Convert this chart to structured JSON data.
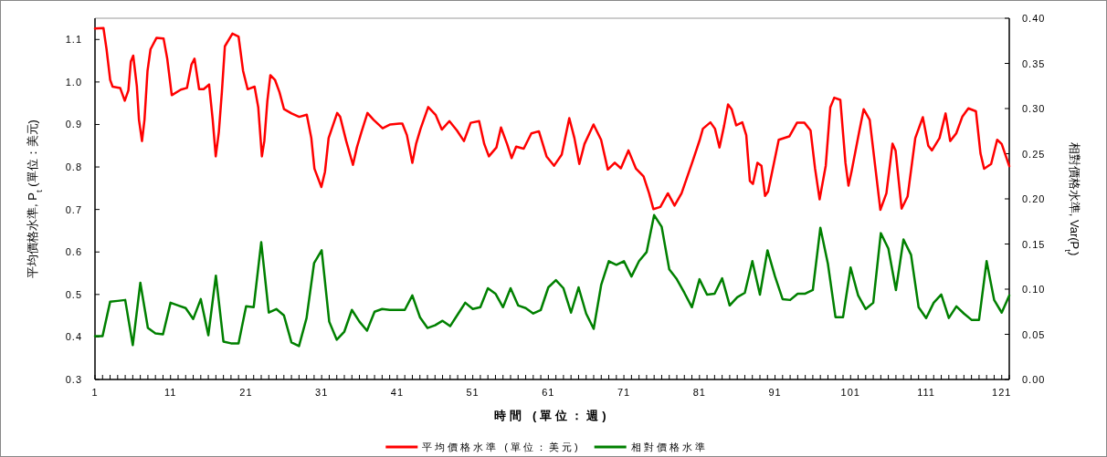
{
  "chart_data": {
    "type": "line",
    "xlabel": "時間 (單位：週)",
    "ylabel": "平均價格水準, P$_{t}$ (單位：美元)",
    "y2label": "相對價格水準, Var(P$_{t}$)",
    "x": [
      1,
      2,
      3,
      4,
      5,
      6,
      7,
      8,
      9,
      10,
      11,
      12,
      13,
      14,
      15,
      16,
      17,
      18,
      19,
      20,
      21,
      22,
      23,
      24,
      25,
      26,
      27,
      28,
      29,
      30,
      31,
      32,
      33,
      34,
      35,
      36,
      37,
      38,
      39,
      40,
      41,
      42,
      43,
      44,
      45,
      46,
      47,
      48,
      49,
      50,
      51,
      52,
      53,
      54,
      55,
      56,
      57,
      58,
      59,
      60,
      61,
      62,
      63,
      64,
      65,
      66,
      67,
      68,
      69,
      70,
      71,
      72,
      73,
      74,
      75,
      76,
      77,
      78,
      79,
      80,
      81,
      82,
      83,
      84,
      85,
      86,
      87,
      88,
      89,
      90,
      91,
      92,
      93,
      94,
      95,
      96,
      97,
      98,
      99,
      100,
      101,
      102,
      103,
      104,
      105,
      106,
      107,
      108,
      109,
      110,
      111,
      112,
      113,
      114,
      115,
      116,
      117,
      118,
      119,
      120,
      121,
      122
    ],
    "series": [
      {
        "name": "平均價格水準 (單位：美元)",
        "color": "#ff0000",
        "x": [
          1.0,
          2.12,
          2.53,
          3.01,
          3.33,
          4.33,
          4.94,
          5.42,
          5.74,
          6.06,
          6.54,
          6.82,
          7.22,
          7.55,
          7.95,
          8.35,
          9.15,
          10.08,
          10.56,
          11.16,
          12.37,
          13.17,
          13.77,
          14.17,
          14.78,
          15.38,
          16.1,
          16.58,
          16.98,
          17.39,
          17.79,
          18.19,
          19.19,
          20.0,
          20.6,
          21.2,
          22.12,
          22.61,
          23.09,
          23.41,
          23.81,
          24.21,
          24.82,
          25.42,
          26.02,
          27.02,
          28.03,
          29.03,
          29.63,
          30.04,
          30.96,
          31.44,
          31.92,
          33.05,
          33.45,
          34.25,
          35.14,
          35.66,
          36.26,
          37.06,
          37.87,
          39.07,
          40.08,
          41.28,
          41.68,
          42.28,
          43.0,
          43.49,
          44.09,
          45.1,
          46.1,
          46.9,
          47.9,
          48.9,
          49.83,
          50.72,
          51.84,
          52.52,
          53.13,
          54.13,
          54.73,
          55.54,
          56.14,
          56.74,
          57.74,
          58.75,
          59.75,
          60.76,
          61.76,
          62.77,
          63.77,
          64.45,
          65.1,
          65.78,
          66.98,
          67.98,
          68.87,
          69.79,
          70.6,
          71.6,
          72.6,
          73.6,
          74.33,
          74.9,
          75.82,
          76.82,
          77.7,
          78.63,
          80.03,
          81.04,
          81.45,
          82.45,
          83.05,
          83.65,
          84.26,
          84.78,
          85.26,
          85.86,
          86.67,
          87.19,
          87.67,
          88.07,
          88.67,
          89.2,
          89.68,
          90.08,
          91.49,
          92.89,
          93.9,
          94.9,
          95.7,
          96.3,
          96.9,
          97.71,
          98.31,
          98.84,
          99.64,
          100.32,
          100.72,
          101.12,
          102.13,
          102.73,
          103.53,
          104.34,
          104.94,
          105.74,
          106.55,
          106.95,
          107.75,
          108.55,
          109.56,
          110.56,
          111.28,
          111.77,
          112.77,
          113.57,
          114.18,
          114.98,
          115.78,
          116.59,
          117.59,
          118.19,
          118.67,
          119.6,
          120.4,
          121.0,
          122.0
        ],
        "values": [
          1.126,
          1.127,
          1.077,
          1.005,
          0.989,
          0.986,
          0.956,
          0.98,
          1.048,
          1.062,
          0.99,
          0.911,
          0.861,
          0.911,
          1.026,
          1.077,
          1.104,
          1.102,
          1.055,
          0.969,
          0.982,
          0.986,
          1.041,
          1.055,
          0.983,
          0.983,
          0.994,
          0.911,
          0.825,
          0.882,
          0.976,
          1.084,
          1.114,
          1.107,
          1.026,
          0.983,
          0.989,
          0.94,
          0.825,
          0.861,
          0.955,
          1.016,
          1.005,
          0.976,
          0.936,
          0.926,
          0.918,
          0.923,
          0.868,
          0.796,
          0.753,
          0.789,
          0.868,
          0.927,
          0.918,
          0.861,
          0.805,
          0.846,
          0.882,
          0.927,
          0.911,
          0.891,
          0.9,
          0.902,
          0.902,
          0.875,
          0.81,
          0.854,
          0.89,
          0.941,
          0.922,
          0.888,
          0.908,
          0.886,
          0.861,
          0.904,
          0.908,
          0.854,
          0.825,
          0.846,
          0.893,
          0.854,
          0.821,
          0.848,
          0.843,
          0.879,
          0.884,
          0.825,
          0.803,
          0.829,
          0.915,
          0.868,
          0.807,
          0.854,
          0.9,
          0.864,
          0.794,
          0.81,
          0.797,
          0.839,
          0.796,
          0.778,
          0.738,
          0.701,
          0.706,
          0.738,
          0.709,
          0.738,
          0.81,
          0.864,
          0.89,
          0.905,
          0.89,
          0.846,
          0.897,
          0.947,
          0.936,
          0.898,
          0.905,
          0.875,
          0.767,
          0.76,
          0.81,
          0.803,
          0.732,
          0.742,
          0.864,
          0.872,
          0.904,
          0.904,
          0.886,
          0.796,
          0.724,
          0.803,
          0.94,
          0.963,
          0.958,
          0.81,
          0.756,
          0.789,
          0.882,
          0.936,
          0.911,
          0.789,
          0.699,
          0.738,
          0.855,
          0.839,
          0.702,
          0.731,
          0.868,
          0.917,
          0.85,
          0.839,
          0.868,
          0.926,
          0.861,
          0.879,
          0.918,
          0.938,
          0.931,
          0.832,
          0.796,
          0.807,
          0.864,
          0.854,
          0.802
        ]
      },
      {
        "name": "相對價格水準",
        "color": "#008000",
        "axis": "y2",
        "values": [
          0.048,
          0.048,
          0.086,
          0.087,
          0.088,
          0.038,
          0.107,
          0.057,
          0.051,
          0.05,
          0.085,
          0.082,
          0.079,
          0.067,
          0.089,
          0.049,
          0.115,
          0.042,
          0.04,
          0.04,
          0.081,
          0.08,
          0.152,
          0.074,
          0.078,
          0.071,
          0.041,
          0.037,
          0.068,
          0.129,
          0.143,
          0.064,
          0.044,
          0.053,
          0.077,
          0.064,
          0.054,
          0.075,
          0.078,
          0.077,
          0.077,
          0.077,
          0.093,
          0.069,
          0.057,
          0.06,
          0.065,
          0.059,
          0.072,
          0.085,
          0.078,
          0.08,
          0.101,
          0.095,
          0.08,
          0.101,
          0.082,
          0.079,
          0.073,
          0.077,
          0.102,
          0.11,
          0.101,
          0.074,
          0.102,
          0.073,
          0.056,
          0.105,
          0.131,
          0.127,
          0.131,
          0.114,
          0.131,
          0.141,
          0.182,
          0.169,
          0.122,
          0.111,
          0.096,
          0.08,
          0.111,
          0.094,
          0.095,
          0.112,
          0.082,
          0.091,
          0.096,
          0.131,
          0.094,
          0.143,
          0.114,
          0.089,
          0.088,
          0.095,
          0.095,
          0.099,
          0.168,
          0.128,
          0.069,
          0.069,
          0.124,
          0.093,
          0.078,
          0.085,
          0.162,
          0.145,
          0.099,
          0.155,
          0.138,
          0.08,
          0.068,
          0.085,
          0.094,
          0.068,
          0.081,
          0.073,
          0.066,
          0.066,
          0.131,
          0.088,
          0.074,
          0.093
        ]
      }
    ],
    "xlim": [
      1,
      122
    ],
    "xticks": [
      1,
      {
        "value": 2,
        "label": null
      },
      {
        "value": 3,
        "label": null
      },
      {
        "value": 4,
        "label": null
      },
      {
        "value": 5,
        "label": null
      },
      {
        "value": 6,
        "label": null
      },
      {
        "value": 7,
        "label": null
      },
      {
        "value": 8,
        "label": null
      },
      {
        "value": 9,
        "label": null
      },
      {
        "value": 10,
        "label": null
      },
      11,
      {
        "value": 12,
        "label": null
      },
      {
        "value": 13,
        "label": null
      },
      {
        "value": 14,
        "label": null
      },
      {
        "value": 15,
        "label": null
      },
      {
        "value": 16,
        "label": null
      },
      {
        "value": 17,
        "label": null
      },
      {
        "value": 18,
        "label": null
      },
      {
        "value": 19,
        "label": null
      },
      {
        "value": 20,
        "label": null
      },
      21,
      {
        "value": 22,
        "label": null
      },
      {
        "value": 23,
        "label": null
      },
      {
        "value": 24,
        "label": null
      },
      {
        "value": 25,
        "label": null
      },
      {
        "value": 26,
        "label": null
      },
      {
        "value": 27,
        "label": null
      },
      {
        "value": 28,
        "label": null
      },
      {
        "value": 29,
        "label": null
      },
      {
        "value": 30,
        "label": null
      },
      31,
      {
        "value": 32,
        "label": null
      },
      {
        "value": 33,
        "label": null
      },
      {
        "value": 34,
        "label": null
      },
      {
        "value": 35,
        "label": null
      },
      {
        "value": 36,
        "label": null
      },
      {
        "value": 37,
        "label": null
      },
      {
        "value": 38,
        "label": null
      },
      {
        "value": 39,
        "label": null
      },
      {
        "value": 40,
        "label": null
      },
      41,
      {
        "value": 42,
        "label": null
      },
      {
        "value": 43,
        "label": null
      },
      {
        "value": 44,
        "label": null
      },
      {
        "value": 45,
        "label": null
      },
      {
        "value": 46,
        "label": null
      },
      {
        "value": 47,
        "label": null
      },
      {
        "value": 48,
        "label": null
      },
      {
        "value": 49,
        "label": null
      },
      {
        "value": 50,
        "label": null
      },
      51,
      {
        "value": 52,
        "label": null
      },
      {
        "value": 53,
        "label": null
      },
      {
        "value": 54,
        "label": null
      },
      {
        "value": 55,
        "label": null
      },
      {
        "value": 56,
        "label": null
      },
      {
        "value": 57,
        "label": null
      },
      {
        "value": 58,
        "label": null
      },
      {
        "value": 59,
        "label": null
      },
      {
        "value": 60,
        "label": null
      },
      61,
      {
        "value": 62,
        "label": null
      },
      {
        "value": 63,
        "label": null
      },
      {
        "value": 64,
        "label": null
      },
      {
        "value": 65,
        "label": null
      },
      {
        "value": 66,
        "label": null
      },
      {
        "value": 67,
        "label": null
      },
      {
        "value": 68,
        "label": null
      },
      {
        "value": 69,
        "label": null
      },
      {
        "value": 70,
        "label": null
      },
      71,
      {
        "value": 72,
        "label": null
      },
      {
        "value": 73,
        "label": null
      },
      {
        "value": 74,
        "label": null
      },
      {
        "value": 75,
        "label": null
      },
      {
        "value": 76,
        "label": null
      },
      {
        "value": 77,
        "label": null
      },
      {
        "value": 78,
        "label": null
      },
      {
        "value": 79,
        "label": null
      },
      {
        "value": 80,
        "label": null
      },
      81,
      {
        "value": 82,
        "label": null
      },
      {
        "value": 83,
        "label": null
      },
      {
        "value": 84,
        "label": null
      },
      {
        "value": 85,
        "label": null
      },
      {
        "value": 86,
        "label": null
      },
      {
        "value": 87,
        "label": null
      },
      {
        "value": 88,
        "label": null
      },
      {
        "value": 89,
        "label": null
      },
      {
        "value": 90,
        "label": null
      },
      91,
      {
        "value": 92,
        "label": null
      },
      {
        "value": 93,
        "label": null
      },
      {
        "value": 94,
        "label": null
      },
      {
        "value": 95,
        "label": null
      },
      {
        "value": 96,
        "label": null
      },
      {
        "value": 97,
        "label": null
      },
      {
        "value": 98,
        "label": null
      },
      {
        "value": 99,
        "label": null
      },
      {
        "value": 100,
        "label": null
      },
      101,
      {
        "value": 102,
        "label": null
      },
      {
        "value": 103,
        "label": null
      },
      {
        "value": 104,
        "label": null
      },
      {
        "value": 105,
        "label": null
      },
      {
        "value": 106,
        "label": null
      },
      {
        "value": 107,
        "label": null
      },
      {
        "value": 108,
        "label": null
      },
      {
        "value": 109,
        "label": null
      },
      {
        "value": 110,
        "label": null
      },
      111,
      {
        "value": 112,
        "label": null
      },
      {
        "value": 113,
        "label": null
      },
      {
        "value": 114,
        "label": null
      },
      {
        "value": 115,
        "label": null
      },
      {
        "value": 116,
        "label": null
      },
      {
        "value": 117,
        "label": null
      },
      {
        "value": 118,
        "label": null
      },
      {
        "value": 119,
        "label": null
      },
      {
        "value": 120,
        "label": null
      },
      121,
      {
        "value": 122,
        "label": null
      }
    ],
    "ylim": [
      0.3,
      1.15
    ],
    "yticks": [
      0.3,
      0.4,
      0.5,
      0.6,
      0.7,
      0.8,
      0.9,
      {
        "value": 1,
        "label": "1.0"
      },
      1.1
    ],
    "y2lim": [
      0,
      0.4
    ],
    "y2ticks": [
      {
        "value": 0,
        "label": "0.00"
      },
      {
        "value": 0.05,
        "label": "0.05"
      },
      {
        "value": 0.1,
        "label": "0.10"
      },
      {
        "value": 0.15,
        "label": "0.15"
      },
      {
        "value": 0.2,
        "label": "0.20"
      },
      {
        "value": 0.25,
        "label": "0.25"
      },
      {
        "value": 0.3,
        "label": "0.30"
      },
      {
        "value": 0.35,
        "label": "0.35"
      },
      {
        "value": 0.4,
        "label": "0.40"
      }
    ],
    "grid": false,
    "legend": "bottom",
    "marker": "none",
    "line_style": "solid"
  }
}
